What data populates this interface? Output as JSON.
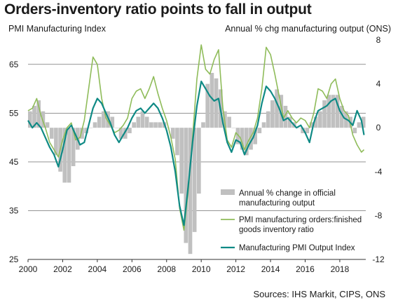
{
  "title": "Orders-inventory ratio points to fall in output",
  "left_axis_label": "PMI Manufacturing  Index",
  "right_axis_label": "Annual  % chg manufacturing output (ONS)",
  "source": "Sources: IHS Markit, CIPS, ONS",
  "colors": {
    "bars": "#c0c0c0",
    "orders_ratio": "#8fbc5a",
    "output_index": "#0f8a85",
    "grid": "#555555"
  },
  "chart_data": {
    "type": "line",
    "x_range": [
      2000,
      2019.5
    ],
    "x_ticks": [
      "2000",
      "2002",
      "2004",
      "2006",
      "2008",
      "2010",
      "2012",
      "2014",
      "2016",
      "2018"
    ],
    "ylim_left": [
      25,
      70
    ],
    "ylim_right": [
      -12,
      8
    ],
    "left_ticks": [
      "25",
      "35",
      "45",
      "55",
      "65"
    ],
    "right_ticks": [
      "-12",
      "-8",
      "-4",
      "0",
      "4",
      "8"
    ],
    "grid": true,
    "legend_position": "bottom-right",
    "series": [
      {
        "name": "Annual % change in official manufacturing output",
        "kind": "bar",
        "axis": "right",
        "points": [
          [
            2000.0,
            1.5
          ],
          [
            2000.25,
            2.0
          ],
          [
            2000.5,
            2.5
          ],
          [
            2000.75,
            1.5
          ],
          [
            2001.0,
            0.5
          ],
          [
            2001.25,
            -1.0
          ],
          [
            2001.5,
            -2.5
          ],
          [
            2001.75,
            -4.0
          ],
          [
            2002.0,
            -5.0
          ],
          [
            2002.25,
            -5.0
          ],
          [
            2002.5,
            -3.5
          ],
          [
            2002.75,
            -2.0
          ],
          [
            2003.0,
            -1.0
          ],
          [
            2003.25,
            -0.5
          ],
          [
            2003.5,
            0.0
          ],
          [
            2003.75,
            0.5
          ],
          [
            2004.0,
            1.0
          ],
          [
            2004.25,
            1.5
          ],
          [
            2004.5,
            1.5
          ],
          [
            2004.75,
            1.0
          ],
          [
            2005.0,
            0.0
          ],
          [
            2005.25,
            -1.0
          ],
          [
            2005.5,
            -1.0
          ],
          [
            2005.75,
            -0.5
          ],
          [
            2006.0,
            0.5
          ],
          [
            2006.25,
            1.0
          ],
          [
            2006.5,
            1.5
          ],
          [
            2006.75,
            1.0
          ],
          [
            2007.0,
            0.5
          ],
          [
            2007.25,
            0.5
          ],
          [
            2007.5,
            0.5
          ],
          [
            2007.75,
            0.5
          ],
          [
            2008.0,
            0.0
          ],
          [
            2008.25,
            -1.0
          ],
          [
            2008.5,
            -2.5
          ],
          [
            2008.75,
            -6.0
          ],
          [
            2009.0,
            -10.5
          ],
          [
            2009.25,
            -11.5
          ],
          [
            2009.5,
            -9.5
          ],
          [
            2009.75,
            -6.0
          ],
          [
            2010.0,
            0.5
          ],
          [
            2010.25,
            4.0
          ],
          [
            2010.5,
            5.0
          ],
          [
            2010.75,
            4.5
          ],
          [
            2011.0,
            3.5
          ],
          [
            2011.25,
            1.5
          ],
          [
            2011.5,
            1.0
          ],
          [
            2011.75,
            0.0
          ],
          [
            2012.0,
            -1.5
          ],
          [
            2012.25,
            -2.0
          ],
          [
            2012.5,
            -2.5
          ],
          [
            2012.75,
            -2.0
          ],
          [
            2013.0,
            -1.5
          ],
          [
            2013.25,
            -0.5
          ],
          [
            2013.5,
            0.5
          ],
          [
            2013.75,
            1.5
          ],
          [
            2014.0,
            2.5
          ],
          [
            2014.25,
            3.5
          ],
          [
            2014.5,
            3.0
          ],
          [
            2014.75,
            2.0
          ],
          [
            2015.0,
            1.0
          ],
          [
            2015.25,
            0.5
          ],
          [
            2015.5,
            0.0
          ],
          [
            2015.75,
            -0.5
          ],
          [
            2016.0,
            -0.5
          ],
          [
            2016.25,
            0.5
          ],
          [
            2016.5,
            1.0
          ],
          [
            2016.75,
            1.5
          ],
          [
            2017.0,
            2.5
          ],
          [
            2017.25,
            3.0
          ],
          [
            2017.5,
            3.0
          ],
          [
            2017.75,
            3.0
          ],
          [
            2018.0,
            2.0
          ],
          [
            2018.25,
            1.5
          ],
          [
            2018.5,
            1.0
          ],
          [
            2018.75,
            -0.5
          ],
          [
            2019.0,
            0.5
          ],
          [
            2019.25,
            1.0
          ]
        ]
      },
      {
        "name": "PMI manufacturing orders:finished goods inventory ratio",
        "kind": "line",
        "axis": "left",
        "points": [
          [
            2000.0,
            55.5
          ],
          [
            2000.25,
            56.0
          ],
          [
            2000.5,
            58.0
          ],
          [
            2000.75,
            54.5
          ],
          [
            2001.0,
            52.0
          ],
          [
            2001.25,
            49.0
          ],
          [
            2001.5,
            47.5
          ],
          [
            2001.75,
            46.0
          ],
          [
            2002.0,
            49.5
          ],
          [
            2002.25,
            52.0
          ],
          [
            2002.5,
            53.0
          ],
          [
            2002.75,
            49.5
          ],
          [
            2003.0,
            50.0
          ],
          [
            2003.25,
            53.5
          ],
          [
            2003.5,
            60.0
          ],
          [
            2003.75,
            66.5
          ],
          [
            2004.0,
            65.0
          ],
          [
            2004.25,
            58.0
          ],
          [
            2004.5,
            54.0
          ],
          [
            2004.75,
            52.5
          ],
          [
            2005.0,
            51.0
          ],
          [
            2005.25,
            51.5
          ],
          [
            2005.5,
            52.5
          ],
          [
            2005.75,
            54.0
          ],
          [
            2006.0,
            58.0
          ],
          [
            2006.25,
            59.5
          ],
          [
            2006.5,
            60.0
          ],
          [
            2006.75,
            58.0
          ],
          [
            2007.0,
            60.0
          ],
          [
            2007.25,
            62.5
          ],
          [
            2007.5,
            59.0
          ],
          [
            2007.75,
            56.0
          ],
          [
            2008.0,
            53.5
          ],
          [
            2008.25,
            50.0
          ],
          [
            2008.5,
            45.5
          ],
          [
            2008.75,
            35.5
          ],
          [
            2009.0,
            31.0
          ],
          [
            2009.25,
            39.0
          ],
          [
            2009.5,
            50.0
          ],
          [
            2009.75,
            62.0
          ],
          [
            2010.0,
            69.0
          ],
          [
            2010.25,
            64.0
          ],
          [
            2010.5,
            63.0
          ],
          [
            2010.75,
            66.0
          ],
          [
            2011.0,
            68.0
          ],
          [
            2011.25,
            56.0
          ],
          [
            2011.5,
            49.5
          ],
          [
            2011.75,
            48.0
          ],
          [
            2012.0,
            51.0
          ],
          [
            2012.25,
            50.0
          ],
          [
            2012.5,
            47.5
          ],
          [
            2012.75,
            49.5
          ],
          [
            2013.0,
            51.0
          ],
          [
            2013.25,
            54.0
          ],
          [
            2013.5,
            60.0
          ],
          [
            2013.75,
            68.5
          ],
          [
            2014.0,
            67.0
          ],
          [
            2014.25,
            63.0
          ],
          [
            2014.5,
            58.5
          ],
          [
            2014.75,
            54.0
          ],
          [
            2015.0,
            55.5
          ],
          [
            2015.25,
            54.0
          ],
          [
            2015.5,
            53.0
          ],
          [
            2015.75,
            54.0
          ],
          [
            2016.0,
            53.5
          ],
          [
            2016.25,
            52.0
          ],
          [
            2016.5,
            55.0
          ],
          [
            2016.75,
            60.0
          ],
          [
            2017.0,
            59.5
          ],
          [
            2017.25,
            58.0
          ],
          [
            2017.5,
            61.0
          ],
          [
            2017.75,
            62.0
          ],
          [
            2018.0,
            58.0
          ],
          [
            2018.25,
            55.5
          ],
          [
            2018.5,
            54.5
          ],
          [
            2018.75,
            50.5
          ],
          [
            2019.0,
            48.5
          ],
          [
            2019.25,
            47.0
          ],
          [
            2019.4,
            47.5
          ]
        ]
      },
      {
        "name": "Manufacturing PMI Output Index",
        "kind": "line",
        "axis": "left",
        "points": [
          [
            2000.0,
            53.5
          ],
          [
            2000.25,
            52.0
          ],
          [
            2000.5,
            53.0
          ],
          [
            2000.75,
            52.0
          ],
          [
            2001.0,
            50.0
          ],
          [
            2001.25,
            48.0
          ],
          [
            2001.5,
            46.5
          ],
          [
            2001.75,
            44.0
          ],
          [
            2002.0,
            47.5
          ],
          [
            2002.25,
            51.5
          ],
          [
            2002.5,
            52.5
          ],
          [
            2002.75,
            50.5
          ],
          [
            2003.0,
            48.5
          ],
          [
            2003.25,
            49.0
          ],
          [
            2003.5,
            52.5
          ],
          [
            2003.75,
            56.0
          ],
          [
            2004.0,
            58.0
          ],
          [
            2004.25,
            57.0
          ],
          [
            2004.5,
            55.0
          ],
          [
            2004.75,
            53.0
          ],
          [
            2005.0,
            50.5
          ],
          [
            2005.25,
            49.0
          ],
          [
            2005.5,
            50.5
          ],
          [
            2005.75,
            52.0
          ],
          [
            2006.0,
            54.0
          ],
          [
            2006.25,
            55.5
          ],
          [
            2006.5,
            56.0
          ],
          [
            2006.75,
            55.0
          ],
          [
            2007.0,
            56.0
          ],
          [
            2007.25,
            57.0
          ],
          [
            2007.5,
            56.0
          ],
          [
            2007.75,
            54.0
          ],
          [
            2008.0,
            51.5
          ],
          [
            2008.25,
            48.0
          ],
          [
            2008.5,
            43.0
          ],
          [
            2008.75,
            36.0
          ],
          [
            2009.0,
            32.0
          ],
          [
            2009.25,
            40.0
          ],
          [
            2009.5,
            49.0
          ],
          [
            2009.75,
            56.5
          ],
          [
            2010.0,
            61.5
          ],
          [
            2010.25,
            60.0
          ],
          [
            2010.5,
            58.5
          ],
          [
            2010.75,
            57.5
          ],
          [
            2011.0,
            58.0
          ],
          [
            2011.25,
            53.0
          ],
          [
            2011.5,
            49.0
          ],
          [
            2011.75,
            47.0
          ],
          [
            2012.0,
            49.5
          ],
          [
            2012.25,
            49.0
          ],
          [
            2012.5,
            46.5
          ],
          [
            2012.75,
            48.5
          ],
          [
            2013.0,
            50.0
          ],
          [
            2013.25,
            52.5
          ],
          [
            2013.5,
            57.0
          ],
          [
            2013.75,
            60.5
          ],
          [
            2014.0,
            59.5
          ],
          [
            2014.25,
            58.0
          ],
          [
            2014.5,
            56.0
          ],
          [
            2014.75,
            53.5
          ],
          [
            2015.0,
            54.0
          ],
          [
            2015.25,
            53.0
          ],
          [
            2015.5,
            52.0
          ],
          [
            2015.75,
            52.5
          ],
          [
            2016.0,
            51.0
          ],
          [
            2016.25,
            49.0
          ],
          [
            2016.5,
            53.0
          ],
          [
            2016.75,
            55.5
          ],
          [
            2017.0,
            56.0
          ],
          [
            2017.25,
            56.5
          ],
          [
            2017.5,
            57.5
          ],
          [
            2017.75,
            58.0
          ],
          [
            2018.0,
            55.5
          ],
          [
            2018.25,
            54.0
          ],
          [
            2018.5,
            53.5
          ],
          [
            2018.75,
            52.5
          ],
          [
            2019.0,
            55.5
          ],
          [
            2019.25,
            53.5
          ],
          [
            2019.4,
            50.5
          ]
        ]
      }
    ]
  }
}
